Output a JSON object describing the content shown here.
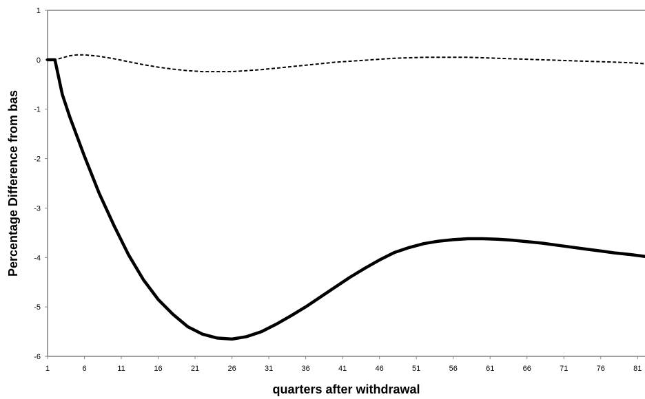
{
  "chart_data": {
    "type": "line",
    "title": "",
    "xlabel": "quarters after withdrawal",
    "ylabel": "Percentage Difference from bas",
    "x_ticks": [
      1,
      6,
      11,
      16,
      21,
      26,
      31,
      36,
      41,
      46,
      51,
      56,
      61,
      66,
      71,
      76,
      81
    ],
    "y_ticks": [
      1,
      0,
      -1,
      -2,
      -3,
      -4,
      -5,
      -6
    ],
    "xlim": [
      1,
      82
    ],
    "ylim": [
      -6,
      1
    ],
    "grid": false,
    "legend": "none",
    "series": [
      {
        "style": "solid-thick",
        "color": "#000000",
        "x": [
          1,
          2,
          3,
          4,
          6,
          8,
          10,
          12,
          14,
          16,
          18,
          20,
          22,
          24,
          26,
          28,
          30,
          32,
          34,
          36,
          38,
          40,
          42,
          44,
          46,
          48,
          50,
          52,
          54,
          56,
          58,
          60,
          62,
          64,
          66,
          68,
          70,
          72,
          74,
          76,
          78,
          80,
          82
        ],
        "y": [
          0,
          0,
          -0.7,
          -1.15,
          -1.95,
          -2.7,
          -3.35,
          -3.95,
          -4.45,
          -4.85,
          -5.15,
          -5.4,
          -5.55,
          -5.63,
          -5.65,
          -5.6,
          -5.5,
          -5.35,
          -5.18,
          -5.0,
          -4.8,
          -4.6,
          -4.4,
          -4.22,
          -4.05,
          -3.9,
          -3.8,
          -3.72,
          -3.67,
          -3.64,
          -3.62,
          -3.62,
          -3.63,
          -3.65,
          -3.68,
          -3.71,
          -3.75,
          -3.79,
          -3.83,
          -3.87,
          -3.91,
          -3.94,
          -3.98
        ]
      },
      {
        "style": "dashed",
        "color": "#000000",
        "x": [
          1,
          2,
          3,
          4,
          5,
          6,
          8,
          10,
          12,
          14,
          16,
          18,
          20,
          22,
          24,
          26,
          28,
          30,
          32,
          34,
          36,
          38,
          40,
          42,
          44,
          46,
          48,
          50,
          52,
          54,
          56,
          58,
          60,
          62,
          64,
          66,
          68,
          70,
          72,
          74,
          76,
          78,
          80,
          82
        ],
        "y": [
          0,
          0,
          0.04,
          0.08,
          0.1,
          0.1,
          0.07,
          0.02,
          -0.04,
          -0.1,
          -0.15,
          -0.19,
          -0.22,
          -0.24,
          -0.24,
          -0.24,
          -0.22,
          -0.2,
          -0.17,
          -0.14,
          -0.11,
          -0.08,
          -0.05,
          -0.03,
          -0.01,
          0.01,
          0.03,
          0.04,
          0.05,
          0.05,
          0.05,
          0.05,
          0.04,
          0.03,
          0.02,
          0.01,
          0.0,
          -0.01,
          -0.02,
          -0.03,
          -0.04,
          -0.05,
          -0.06,
          -0.08
        ]
      }
    ]
  }
}
